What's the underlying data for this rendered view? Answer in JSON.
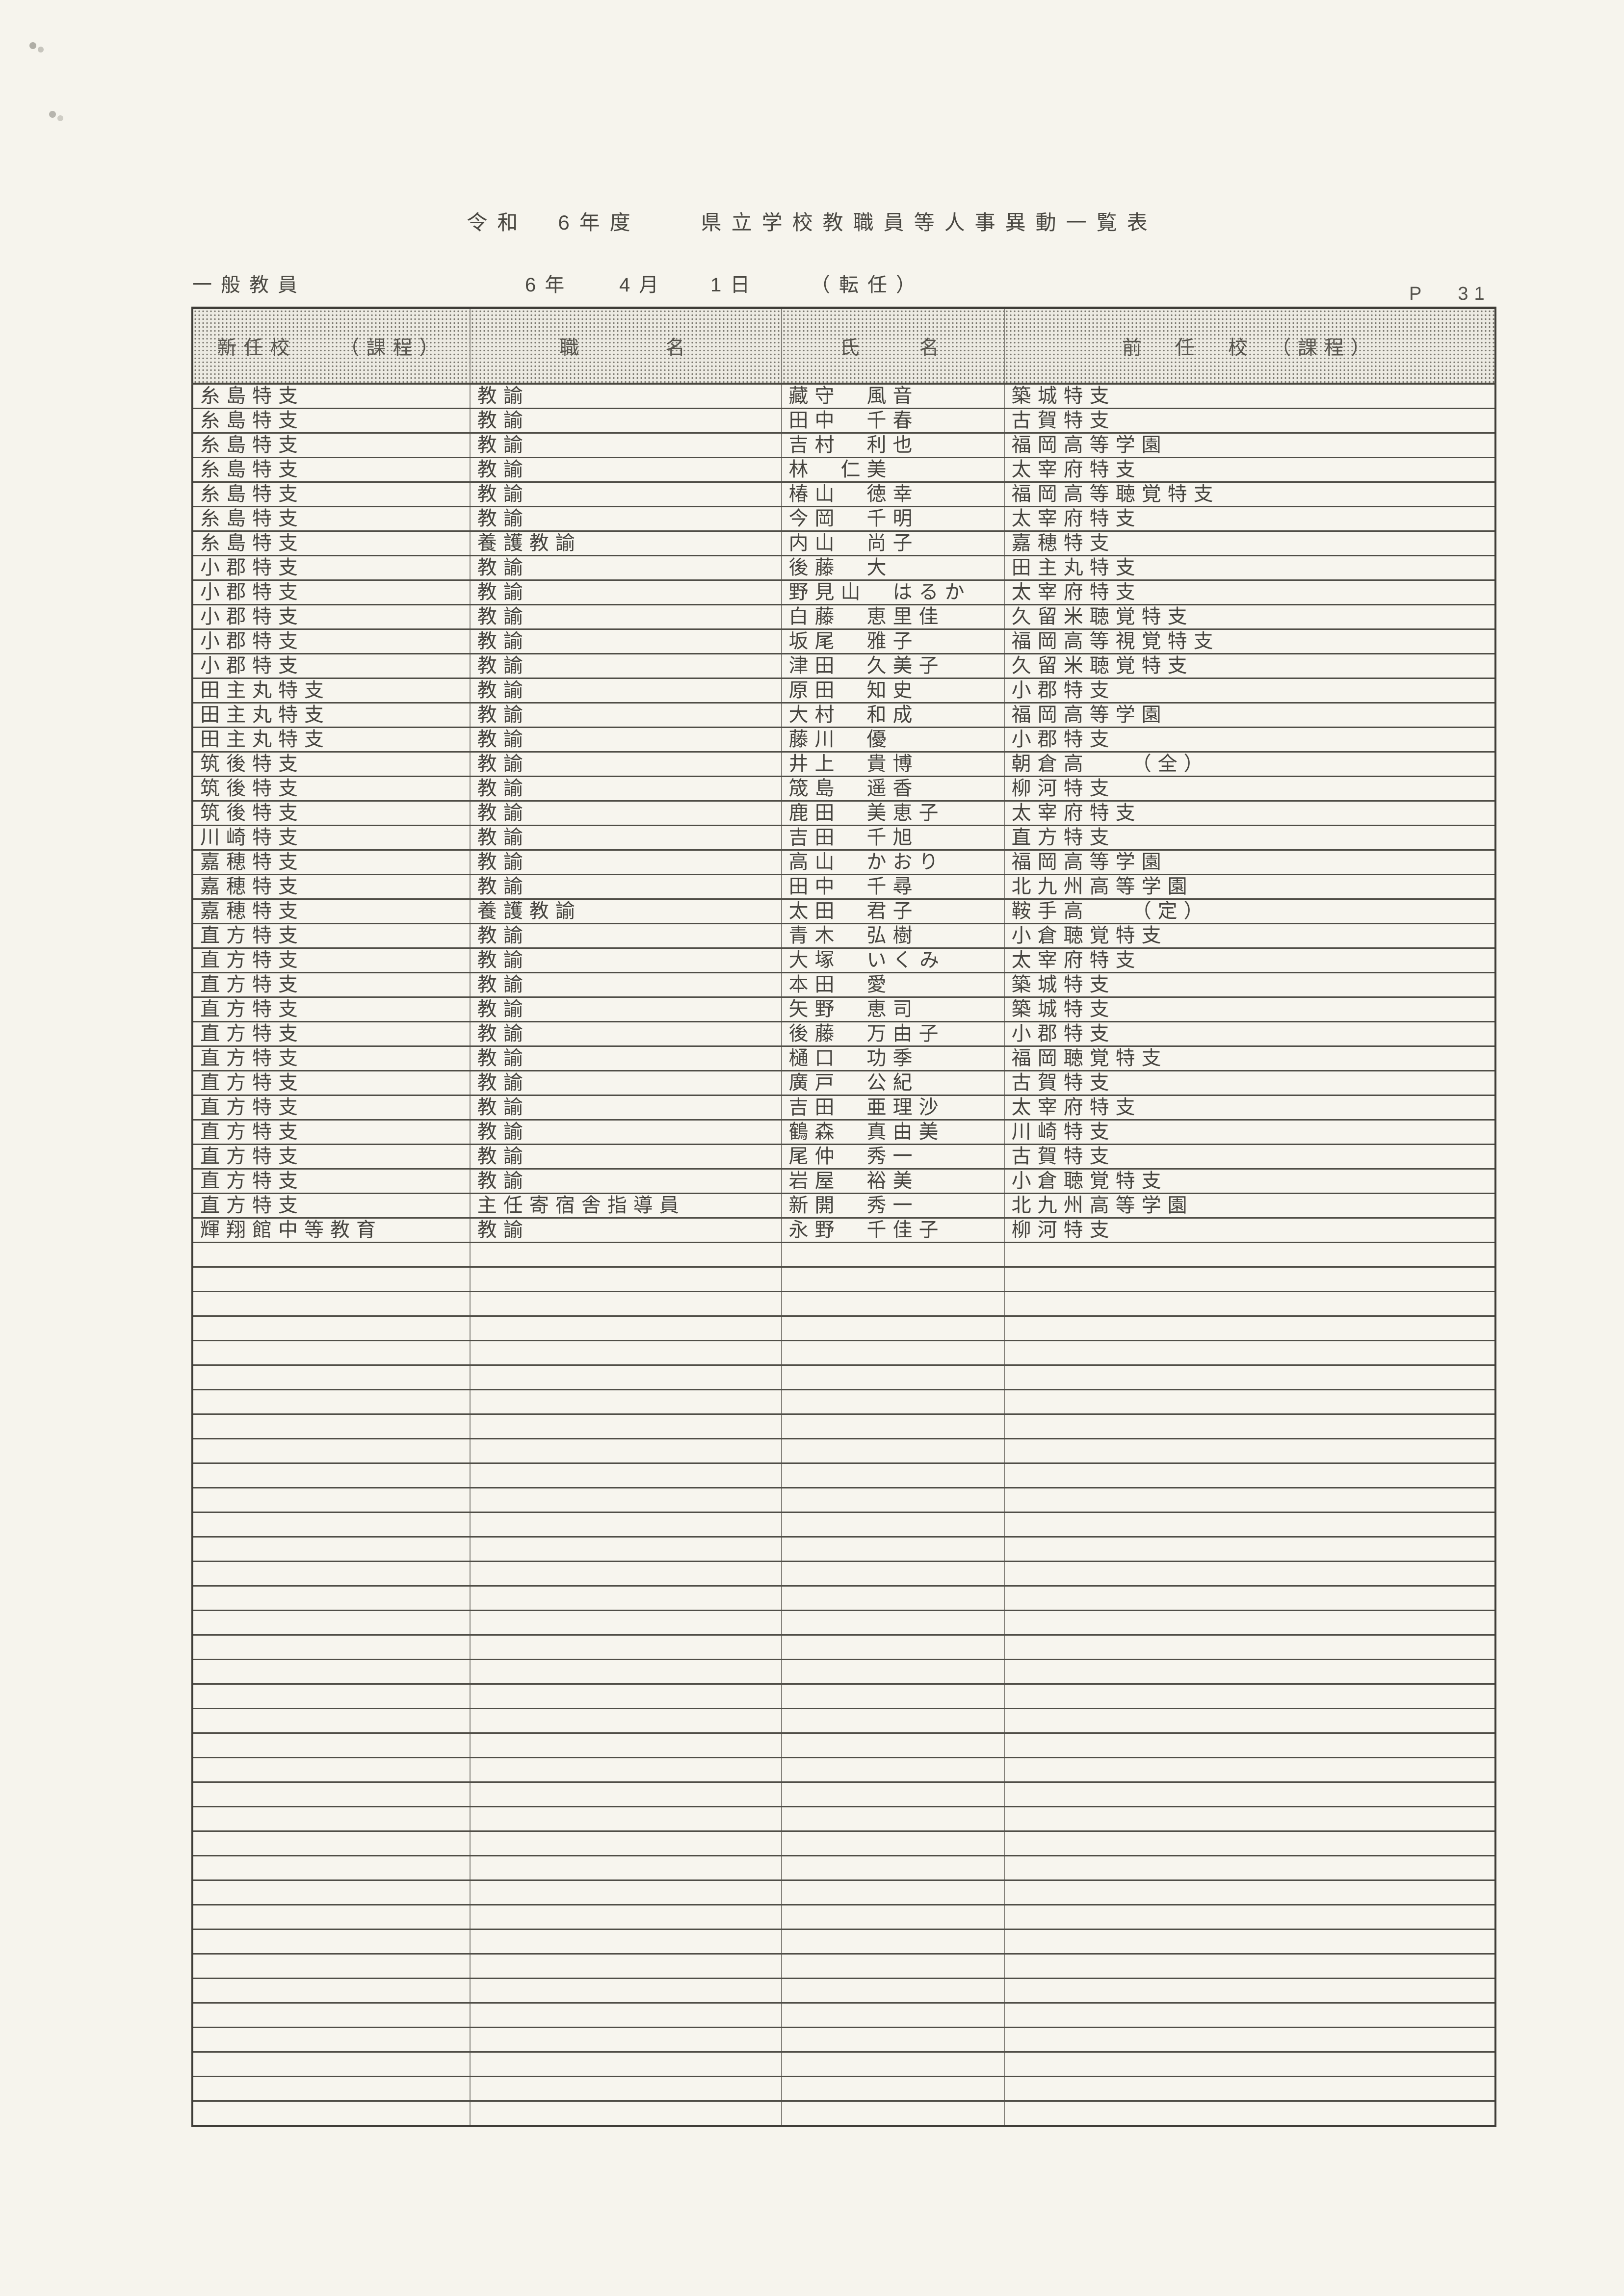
{
  "page": {
    "title": "令和　6年度　　県立学校教職員等人事異動一覧表",
    "subtitle": {
      "category": "一般教員",
      "year": "6年",
      "month": "4月",
      "day": "1日",
      "transfer_type": "（転任）"
    },
    "page_label": "P",
    "page_number": "31"
  },
  "table": {
    "columns": [
      "新任校　　（課程）",
      "職　　　名",
      "氏　　名",
      "前　任　校　（課程）"
    ],
    "rows": [
      [
        "糸島特支",
        "教諭",
        "藏守　風音",
        "築城特支"
      ],
      [
        "糸島特支",
        "教諭",
        "田中　千春",
        "古賀特支"
      ],
      [
        "糸島特支",
        "教諭",
        "吉村　利也",
        "福岡高等学園"
      ],
      [
        "糸島特支",
        "教諭",
        "林　仁美",
        "太宰府特支"
      ],
      [
        "糸島特支",
        "教諭",
        "椿山　徳幸",
        "福岡高等聴覚特支"
      ],
      [
        "糸島特支",
        "教諭",
        "今岡　千明",
        "太宰府特支"
      ],
      [
        "糸島特支",
        "養護教諭",
        "内山　尚子",
        "嘉穂特支"
      ],
      [
        "小郡特支",
        "教諭",
        "後藤　大",
        "田主丸特支"
      ],
      [
        "小郡特支",
        "教諭",
        "野見山　はるか",
        "太宰府特支"
      ],
      [
        "小郡特支",
        "教諭",
        "白藤　恵里佳",
        "久留米聴覚特支"
      ],
      [
        "小郡特支",
        "教諭",
        "坂尾　雅子",
        "福岡高等視覚特支"
      ],
      [
        "小郡特支",
        "教諭",
        "津田　久美子",
        "久留米聴覚特支"
      ],
      [
        "田主丸特支",
        "教諭",
        "原田　知史",
        "小郡特支"
      ],
      [
        "田主丸特支",
        "教諭",
        "大村　和成",
        "福岡高等学園"
      ],
      [
        "田主丸特支",
        "教諭",
        "藤川　優",
        "小郡特支"
      ],
      [
        "筑後特支",
        "教諭",
        "井上　貴博",
        "朝倉高　　（全）"
      ],
      [
        "筑後特支",
        "教諭",
        "筬島　遥香",
        "柳河特支"
      ],
      [
        "筑後特支",
        "教諭",
        "鹿田　美恵子",
        "太宰府特支"
      ],
      [
        "川崎特支",
        "教諭",
        "吉田　千旭",
        "直方特支"
      ],
      [
        "嘉穂特支",
        "教諭",
        "高山　かおり",
        "福岡高等学園"
      ],
      [
        "嘉穂特支",
        "教諭",
        "田中　千尋",
        "北九州高等学園"
      ],
      [
        "嘉穂特支",
        "養護教諭",
        "太田　君子",
        "鞍手高　　（定）"
      ],
      [
        "直方特支",
        "教諭",
        "青木　弘樹",
        "小倉聴覚特支"
      ],
      [
        "直方特支",
        "教諭",
        "大塚　いくみ",
        "太宰府特支"
      ],
      [
        "直方特支",
        "教諭",
        "本田　愛",
        "築城特支"
      ],
      [
        "直方特支",
        "教諭",
        "矢野　恵司",
        "築城特支"
      ],
      [
        "直方特支",
        "教諭",
        "後藤　万由子",
        "小郡特支"
      ],
      [
        "直方特支",
        "教諭",
        "樋口　功季",
        "福岡聴覚特支"
      ],
      [
        "直方特支",
        "教諭",
        "廣戸　公紀",
        "古賀特支"
      ],
      [
        "直方特支",
        "教諭",
        "吉田　亜理沙",
        "太宰府特支"
      ],
      [
        "直方特支",
        "教諭",
        "鶴森　真由美",
        "川崎特支"
      ],
      [
        "直方特支",
        "教諭",
        "尾仲　秀一",
        "古賀特支"
      ],
      [
        "直方特支",
        "教諭",
        "岩屋　裕美",
        "小倉聴覚特支"
      ],
      [
        "直方特支",
        "主任寄宿舎指導員",
        "新開　秀一",
        "北九州高等学園"
      ],
      [
        "輝翔館中等教育",
        "教諭",
        "永野　千佳子",
        "柳河特支"
      ]
    ],
    "empty_row_count": 36
  }
}
